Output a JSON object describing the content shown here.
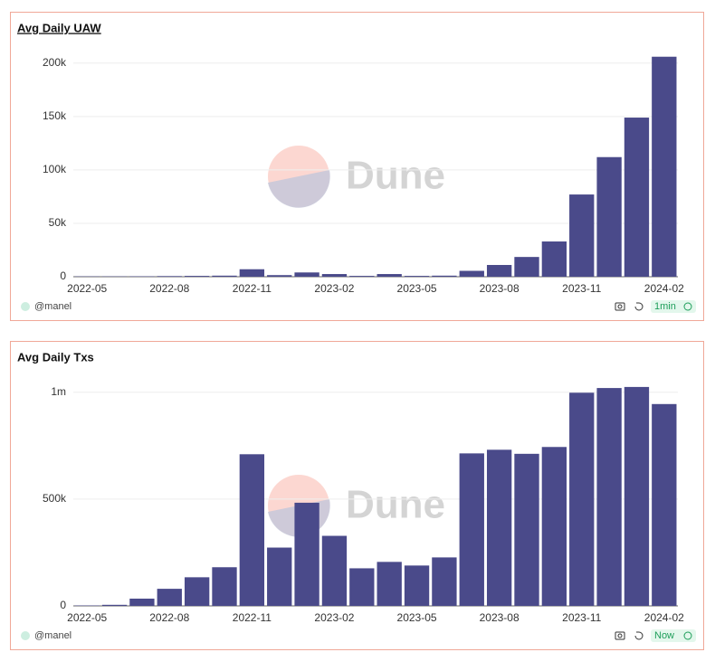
{
  "chart_data": [
    {
      "type": "bar",
      "title": "Avg Daily UAW",
      "watermark": "Dune",
      "author": "@manel",
      "refresh": "1min",
      "color": "#4a4a8a",
      "categories": [
        "2022-05",
        null,
        null,
        "2022-08",
        null,
        null,
        "2022-11",
        null,
        null,
        "2023-02",
        null,
        null,
        "2023-05",
        null,
        null,
        "2023-08",
        null,
        null,
        "2023-11",
        null,
        null,
        "2024-02"
      ],
      "values": [
        300,
        300,
        400,
        600,
        800,
        1000,
        7000,
        1500,
        4000,
        2500,
        800,
        2500,
        800,
        1000,
        5500,
        11000,
        18500,
        33000,
        77000,
        112000,
        149000,
        206000
      ],
      "ylim": [
        0,
        210000
      ],
      "yticks": [
        0,
        {
          "value": 50000,
          "label": "50k"
        },
        {
          "value": 100000,
          "label": "100k"
        },
        {
          "value": 150000,
          "label": "150k"
        },
        {
          "value": 200000,
          "label": "200k"
        }
      ],
      "grid": true
    },
    {
      "type": "bar",
      "title": "Avg Daily Txs",
      "watermark": "Dune",
      "author": "@manel",
      "refresh": "Now",
      "color": "#4a4a8a",
      "categories": [
        "2022-05",
        null,
        null,
        "2022-08",
        null,
        null,
        "2022-11",
        null,
        null,
        "2023-02",
        null,
        null,
        "2023-05",
        null,
        null,
        "2023-08",
        null,
        null,
        "2023-11",
        null,
        null,
        "2024-02"
      ],
      "values": [
        2000,
        5000,
        34000,
        80000,
        134000,
        181000,
        710000,
        273000,
        483000,
        328000,
        176000,
        206000,
        189000,
        227000,
        714000,
        731000,
        712000,
        744000,
        998000,
        1020000,
        1025000,
        945000
      ],
      "ylim": [
        0,
        1050000
      ],
      "yticks": [
        0,
        {
          "value": 500000,
          "label": "500k"
        },
        {
          "value": 1000000,
          "label": "1m"
        }
      ],
      "grid": true
    }
  ]
}
